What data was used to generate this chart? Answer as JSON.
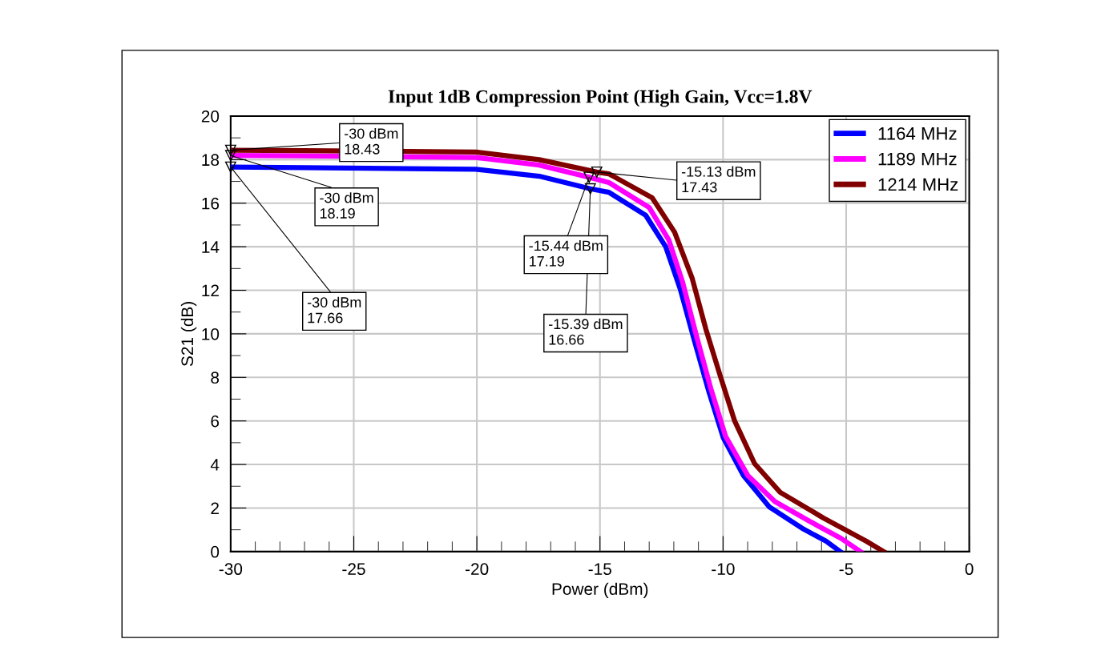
{
  "chart_data": {
    "type": "line",
    "title": "Input 1dB Compression Point (High Gain, Vcc=1.8V",
    "xlabel": "Power (dBm)",
    "ylabel": "S21 (dB)",
    "xlim": [
      -30,
      0
    ],
    "xticks": [
      -30,
      -25,
      -20,
      -15,
      -10,
      -5,
      0
    ],
    "ylim": [
      0,
      20
    ],
    "yticks": [
      0,
      2,
      4,
      6,
      8,
      10,
      12,
      14,
      16,
      18,
      20
    ],
    "grid": true,
    "legend": "top right",
    "marker": "none",
    "line_style": "solid",
    "series": [
      {
        "name": "1164 MHz",
        "color": "#0000ff",
        "x": [
          -30,
          -27,
          -20.04,
          -17.47,
          -15.39,
          -14.64,
          -13.14,
          -12.33,
          -11.74,
          -11.16,
          -10.57,
          -9.99,
          -9.17,
          -8.13,
          -6.73,
          -5.82,
          -5.24
        ],
        "values": [
          17.66,
          17.63,
          17.56,
          17.24,
          16.66,
          16.5,
          15.44,
          14.0,
          12.06,
          9.67,
          7.32,
          5.22,
          3.49,
          2.06,
          1.03,
          0.48,
          0.0
        ]
      },
      {
        "name": "1189 MHz",
        "color": "#ff00ff",
        "x": [
          -30,
          -27,
          -20.04,
          -17.47,
          -15.44,
          -14.64,
          -13.0,
          -12.2,
          -11.65,
          -11.08,
          -10.5,
          -9.9,
          -9.0,
          -7.9,
          -6.5,
          -5.2,
          -4.42
        ],
        "values": [
          18.19,
          18.17,
          18.1,
          17.75,
          17.19,
          16.95,
          15.8,
          14.3,
          12.4,
          9.9,
          7.5,
          5.3,
          3.5,
          2.3,
          1.4,
          0.6,
          0.0
        ]
      },
      {
        "name": "1214 MHz",
        "color": "#800000",
        "x": [
          -30,
          -27,
          -20.04,
          -17.47,
          -15.13,
          -14.64,
          -12.88,
          -11.97,
          -11.26,
          -10.7,
          -10.12,
          -9.53,
          -8.72,
          -7.68,
          -5.92,
          -4.19,
          -3.48
        ],
        "values": [
          18.43,
          18.41,
          18.35,
          18.0,
          17.43,
          17.35,
          16.25,
          14.67,
          12.57,
          10.22,
          8.09,
          6.0,
          4.04,
          2.72,
          1.54,
          0.48,
          0.0
        ]
      }
    ],
    "annotations": [
      {
        "text": "-30 dBm\n18.43",
        "x": -30,
        "y": 18.43
      },
      {
        "text": "-30 dBm\n18.19",
        "x": -30,
        "y": 18.19
      },
      {
        "text": "-30 dBm\n17.66",
        "x": -30,
        "y": 17.66
      },
      {
        "text": "-15.44 dBm\n17.19",
        "x": -15.44,
        "y": 17.19
      },
      {
        "text": "-15.39 dBm\n16.66",
        "x": -15.39,
        "y": 16.66
      },
      {
        "text": "-15.13 dBm\n17.43",
        "x": -15.13,
        "y": 17.43
      }
    ]
  }
}
